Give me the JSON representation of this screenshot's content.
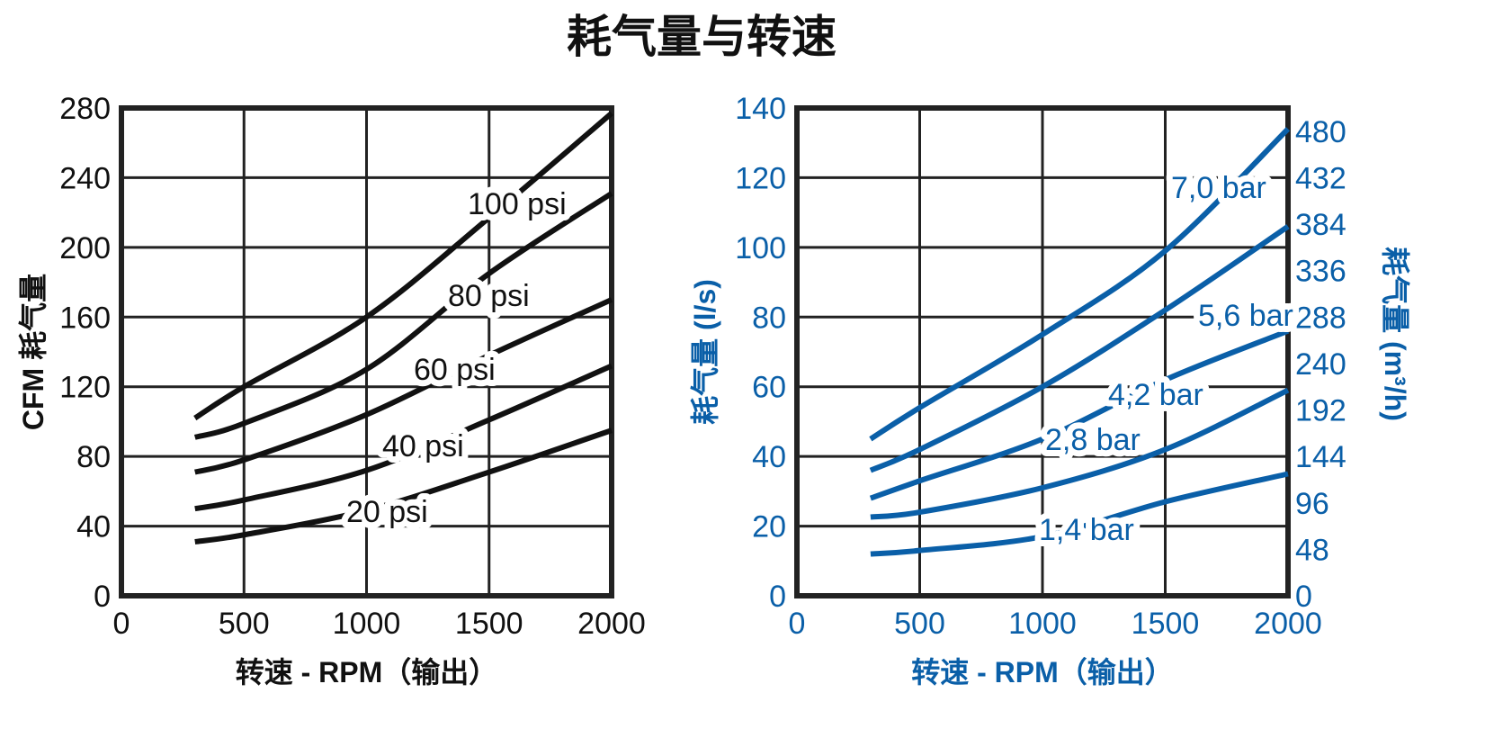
{
  "title": "耗气量与转速",
  "chart_data": [
    {
      "type": "line",
      "xlabel": "转速 - RPM（输出）",
      "ylabel": "CFM 耗气量",
      "xlim": [
        0,
        2000
      ],
      "ylim": [
        0,
        280
      ],
      "xticks": [
        "0",
        "500",
        "1000",
        "1500",
        "2000"
      ],
      "yticks": [
        "0",
        "40",
        "80",
        "120",
        "160",
        "200",
        "240",
        "280"
      ],
      "grid": true,
      "color": "#111111",
      "x": [
        300,
        500,
        1000,
        1500,
        2000
      ],
      "series": [
        {
          "name": "100 psi",
          "values": [
            102,
            120,
            160,
            217,
            277
          ]
        },
        {
          "name": "80 psi",
          "values": [
            91,
            99,
            130,
            185,
            231
          ]
        },
        {
          "name": "60 psi",
          "values": [
            71,
            78,
            104,
            138,
            170
          ]
        },
        {
          "name": "40 psi",
          "values": [
            50,
            55,
            72,
            101,
            132
          ]
        },
        {
          "name": "20 psi",
          "values": [
            31,
            35,
            49,
            71,
            95
          ]
        }
      ]
    },
    {
      "type": "line",
      "xlabel": "转速 - RPM（输出）",
      "ylabel": "耗气量 (l/s)",
      "ylabel_right": "耗气量 (m³/h)",
      "xlim": [
        0,
        2000
      ],
      "ylim": [
        0,
        140
      ],
      "xticks": [
        "0",
        "500",
        "1000",
        "1500",
        "2000"
      ],
      "yticks": [
        "0",
        "20",
        "40",
        "60",
        "80",
        "100",
        "120",
        "140"
      ],
      "yticks_right": [
        "0",
        "48",
        "96",
        "144",
        "192",
        "240",
        "288",
        "336",
        "384",
        "432",
        "480"
      ],
      "grid": true,
      "color": "#0a5fa8",
      "x": [
        300,
        500,
        1000,
        1500,
        2000
      ],
      "series": [
        {
          "name": "7,0 bar",
          "values": [
            45,
            54,
            75,
            99,
            134
          ]
        },
        {
          "name": "5,6 bar",
          "values": [
            36,
            42,
            60,
            82,
            106
          ]
        },
        {
          "name": "4,2 bar",
          "values": [
            28,
            33,
            45,
            62,
            76
          ]
        },
        {
          "name": "2,8 bar",
          "values": [
            22.6,
            24,
            31,
            42,
            59
          ]
        },
        {
          "name": "1,4 bar",
          "values": [
            12,
            13,
            17,
            27,
            35
          ]
        }
      ]
    }
  ]
}
